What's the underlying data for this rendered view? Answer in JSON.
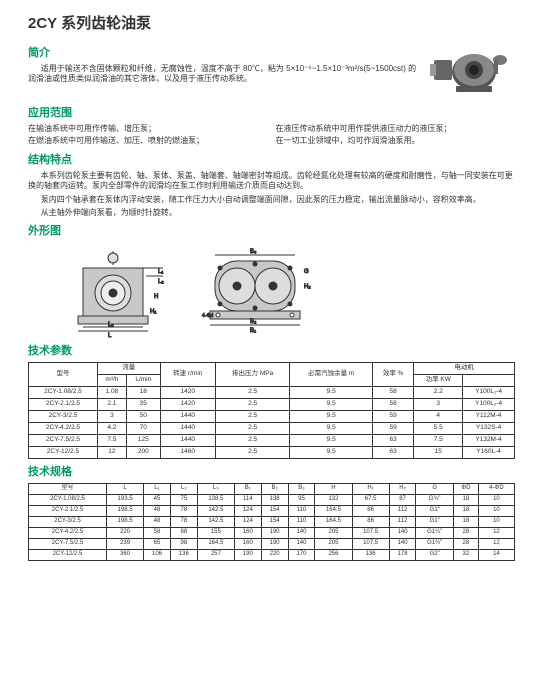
{
  "pageTitle": "2CY 系列齿轮油泵",
  "intro": {
    "title": "简介",
    "text": "适用于输送不含固体颗粒和纤维，无腐蚀性，温度不高于 80℃，粘为 5×10⁻⁶~1.5×10⁻³m²/s(5~1500cst) 的润滑油或性质类似润滑油的其它液体，以及用于液压传动系统。"
  },
  "applications": {
    "title": "应用范围",
    "items": [
      "在输油系统中可用作传输、增压泵；",
      "在液压传动系统中可用作提供液压动力的液压泵；",
      "在燃油系统中可用作输送、加压、喷射的燃油泵；",
      "在一切工业领域中，均可作润滑油泵用。"
    ]
  },
  "structure": {
    "title": "结构特点",
    "p1": "本系列齿轮泵主要有齿轮、轴、泵体、泵盖、轴端套、轴端密封等组成。齿轮经氮化处理有较高的硬度和耐磨性，与轴一同安装在可更换的轴套内运转。泵内全部零件的润滑均在泵工作时利用输送介质而自动达到。",
    "p2": "泵内四个轴承套在泵体内浮动安装，随工作压力大小自动调整端面间隙，因此泵的压力稳定，输出流量脉动小，容积效率高。",
    "p3": "从主轴外伸端向泵看，为顺时针旋转。"
  },
  "dimsTitle": "外形图",
  "paramsTitle": "技术参数",
  "params": {
    "headers": {
      "model": "型号",
      "flow": "流量",
      "flow_m3h": "m³/h",
      "flow_lmin": "L/min",
      "rpm": "转速 r/min",
      "pressure": "排出压力 MPa",
      "npsh": "必需汽蚀余量 m",
      "efficiency": "效率 %",
      "motor": "电动机",
      "power": "功率 KW",
      "motor_model": " "
    },
    "rows": [
      {
        "model": "2CY-1.08/2.5",
        "m3h": "1.08",
        "lmin": "18",
        "rpm": "1420",
        "mpa": "2.5",
        "npsh": "9.5",
        "eff": "58",
        "kw": "2.2",
        "mm": "Y100L₁-4"
      },
      {
        "model": "2CY-2.1/2.5",
        "m3h": "2.1",
        "lmin": "35",
        "rpm": "1420",
        "mpa": "2.5",
        "npsh": "9.5",
        "eff": "58",
        "kw": "3",
        "mm": "Y100L₂-4"
      },
      {
        "model": "2CY-3/2.5",
        "m3h": "3",
        "lmin": "50",
        "rpm": "1440",
        "mpa": "2.5",
        "npsh": "9.5",
        "eff": "59",
        "kw": "4",
        "mm": "Y112M-4"
      },
      {
        "model": "2CY-4.2/2.5",
        "m3h": "4.2",
        "lmin": "70",
        "rpm": "1440",
        "mpa": "2.5",
        "npsh": "9.5",
        "eff": "59",
        "kw": "5.5",
        "mm": "Y132S-4"
      },
      {
        "model": "2CY-7.5/2.5",
        "m3h": "7.5",
        "lmin": "125",
        "rpm": "1440",
        "mpa": "2.5",
        "npsh": "9.5",
        "eff": "63",
        "kw": "7.5",
        "mm": "Y132M-4"
      },
      {
        "model": "2CY-12/2.5",
        "m3h": "12",
        "lmin": "200",
        "rpm": "1460",
        "mpa": "2.5",
        "npsh": "9.5",
        "eff": "63",
        "kw": "15",
        "mm": "Y160L-4"
      }
    ]
  },
  "specsTitle": "技术规格",
  "specs": {
    "headers": [
      "型号",
      "L",
      "L₁",
      "L₂",
      "L₃",
      "B₁",
      "B₂",
      "B₃",
      "H",
      "H₁",
      "H₂",
      "G",
      "ΦD",
      "4-ΦD"
    ],
    "rows": [
      [
        "2CY-1.08/2.5",
        "193.5",
        "45",
        "75",
        "138.5",
        "114",
        "138",
        "95",
        "132",
        "67.5",
        "87",
        "G¾\"",
        "18",
        "10"
      ],
      [
        "2CY-2.1/2.5",
        "198.5",
        "48",
        "78",
        "142.5",
        "124",
        "154",
        "110",
        "164.5",
        "86",
        "112",
        "G1\"",
        "18",
        "10"
      ],
      [
        "2CY-3/2.5",
        "198.5",
        "48",
        "78",
        "142.5",
        "124",
        "154",
        "110",
        "164.5",
        "86",
        "112",
        "G1\"",
        "18",
        "10"
      ],
      [
        "2CY-4.2/2.5",
        "220",
        "58",
        "88",
        "155",
        "160",
        "190",
        "140",
        "205",
        "107.5",
        "140",
        "G1¼\"",
        "28",
        "12"
      ],
      [
        "2CY-7.5/2.5",
        "239",
        "65",
        "98",
        "164.5",
        "160",
        "190",
        "140",
        "205",
        "107.5",
        "140",
        "G1½\"",
        "28",
        "12"
      ],
      [
        "2CY-12/2.5",
        "360",
        "106",
        "136",
        "257",
        "190",
        "220",
        "170",
        "256",
        "136",
        "178",
        "G2\"",
        "32",
        "14"
      ]
    ]
  },
  "colors": {
    "accent": "#009966",
    "text": "#333333",
    "border": "#333333"
  }
}
